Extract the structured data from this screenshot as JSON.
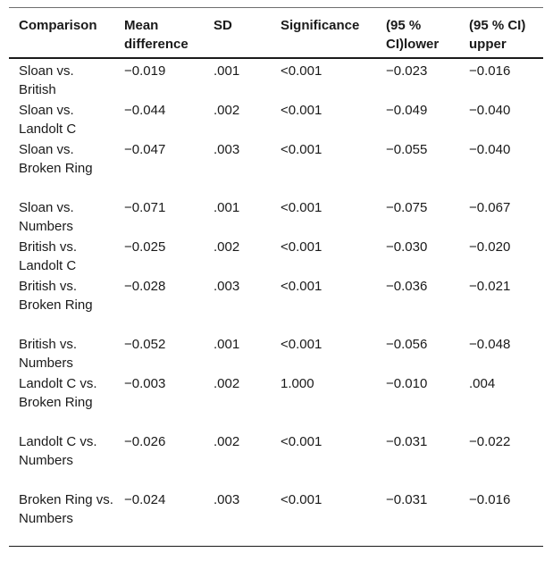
{
  "table": {
    "headers": [
      "Comparison",
      "Mean difference",
      "SD",
      "Significance",
      "(95 % CI)lower",
      "(95 % CI) upper"
    ],
    "rows": [
      [
        "Sloan vs. British",
        "−0.019",
        ".001",
        "<0.001",
        "−0.023",
        "−0.016"
      ],
      [
        "Sloan vs. Landolt C",
        "−0.044",
        ".002",
        "<0.001",
        "−0.049",
        "−0.040"
      ],
      [
        "Sloan vs. Broken Ring",
        "−0.047",
        ".003",
        "<0.001",
        "−0.055",
        "−0.040"
      ],
      [
        "Sloan vs. Numbers",
        "−0.071",
        ".001",
        "<0.001",
        "−0.075",
        "−0.067"
      ],
      [
        "British vs. Landolt C",
        "−0.025",
        ".002",
        "<0.001",
        "−0.030",
        "−0.020"
      ],
      [
        "British vs. Broken Ring",
        "−0.028",
        ".003",
        "<0.001",
        "−0.036",
        "−0.021"
      ],
      [
        "British vs. Numbers",
        "−0.052",
        ".001",
        "<0.001",
        "−0.056",
        "−0.048"
      ],
      [
        "Landolt C vs. Broken Ring",
        "−0.003",
        ".002",
        "1.000",
        "−0.010",
        ".004"
      ],
      [
        "Landolt C vs. Numbers",
        "−0.026",
        ".002",
        "<0.001",
        "−0.031",
        "−0.022"
      ],
      [
        "Broken Ring vs. Numbers",
        "−0.024",
        ".003",
        "<0.001",
        "−0.031",
        "−0.016"
      ]
    ]
  }
}
